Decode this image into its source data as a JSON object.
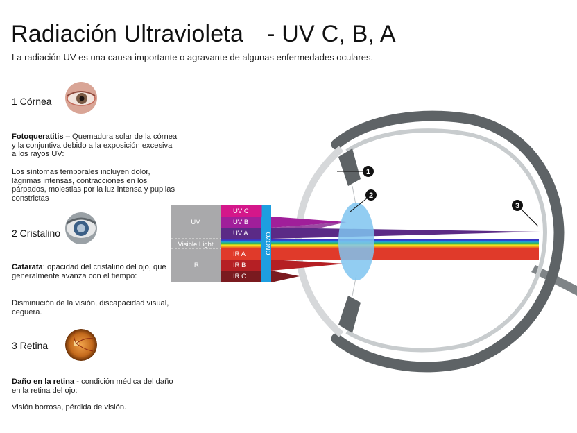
{
  "title_main": "Radiación Ultravioleta",
  "title_suffix": "- UV C, B, A",
  "subtitle": "La radiación UV es una causa importante o agravante de algunas enfermedades oculares.",
  "sections": [
    {
      "heading": "1 Córnea",
      "term": "Fotoqueratitis",
      "term_desc": " – Quemadura solar de la córnea y la conjuntiva debido a la exposición excesiva a los rayos UV:",
      "symptoms": "Los síntomas temporales incluyen dolor, lágrimas intensas, contracciones en los párpados, molestias por la luz intensa y pupilas constrictas"
    },
    {
      "heading": "2 Cristalino",
      "term": "Catarata",
      "term_desc": ": opacidad del cristalino del ojo, que generalmente avanza con el tiempo:",
      "symptoms": "Disminución de la visión, discapacidad visual, ceguera."
    },
    {
      "heading": "3 Retina",
      "term": "Daño en la retina",
      "term_desc": " - condición médica del daño en la retina del ojo:",
      "symptoms": "Visión borrosa, pérdida de visión."
    }
  ],
  "diagram": {
    "groups": {
      "uv": "UV",
      "visible": "Visible Light",
      "ir": "IR"
    },
    "bands": {
      "uvc": "UV C",
      "uvb": "UV B",
      "uva": "UV A",
      "ira": "IR A",
      "irb": "IR B",
      "irc": "IR C"
    },
    "ozone": "OZONO",
    "markers": [
      "1",
      "2",
      "3"
    ],
    "colors": {
      "uvc": "#d4178a",
      "uvb": "#a01f9a",
      "uva": "#5b2a86",
      "ira": "#e03a2a",
      "irb": "#b51f24",
      "irc": "#7a1a1f",
      "ozone": "#1e9ee0",
      "group_bg": "#a9a9ab",
      "eye_wall": "#5e6366",
      "lens": "#7fc4f0"
    }
  }
}
